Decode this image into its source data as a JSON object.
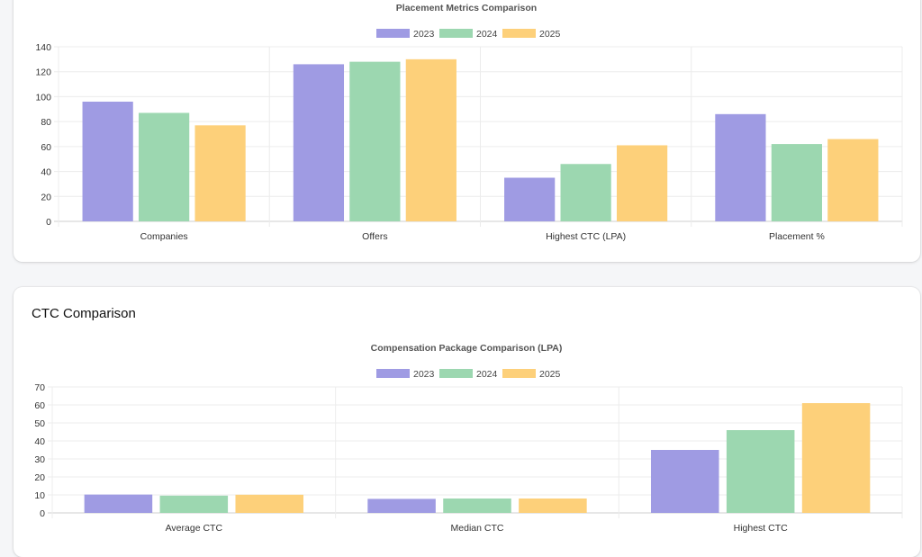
{
  "charts": {
    "metrics": {
      "chart_data": {
        "type": "bar",
        "title": "Placement Metrics Comparison",
        "categories": [
          "Companies",
          "Offers",
          "Highest CTC (LPA)",
          "Placement %"
        ],
        "series": [
          {
            "name": "2023",
            "values": [
              96,
              126,
              35,
              86
            ],
            "color": "#9f9be3"
          },
          {
            "name": "2024",
            "values": [
              87,
              128,
              46,
              62
            ],
            "color": "#9cd7b0"
          },
          {
            "name": "2025",
            "values": [
              77,
              130,
              61,
              66
            ],
            "color": "#fdd07a"
          }
        ],
        "ylim": [
          0,
          140
        ],
        "yticks": [
          0,
          20,
          40,
          60,
          80,
          100,
          120,
          140
        ],
        "xlabel": "",
        "ylabel": "",
        "legend": "top-center",
        "grid": true
      }
    },
    "ctc": {
      "card_title": "CTC Comparison",
      "chart_data": {
        "type": "bar",
        "title": "Compensation Package Comparison (LPA)",
        "categories": [
          "Average CTC",
          "Median CTC",
          "Highest CTC"
        ],
        "series": [
          {
            "name": "2023",
            "values": [
              10.2,
              7.8,
              35
            ],
            "color": "#9f9be3"
          },
          {
            "name": "2024",
            "values": [
              9.6,
              8.0,
              46
            ],
            "color": "#9cd7b0"
          },
          {
            "name": "2025",
            "values": [
              10.1,
              8.0,
              61
            ],
            "color": "#fdd07a"
          }
        ],
        "ylim": [
          0,
          70
        ],
        "yticks": [
          0,
          10,
          20,
          30,
          40,
          50,
          60,
          70
        ],
        "xlabel": "",
        "ylabel": "",
        "legend": "top-center",
        "grid": true
      }
    }
  }
}
